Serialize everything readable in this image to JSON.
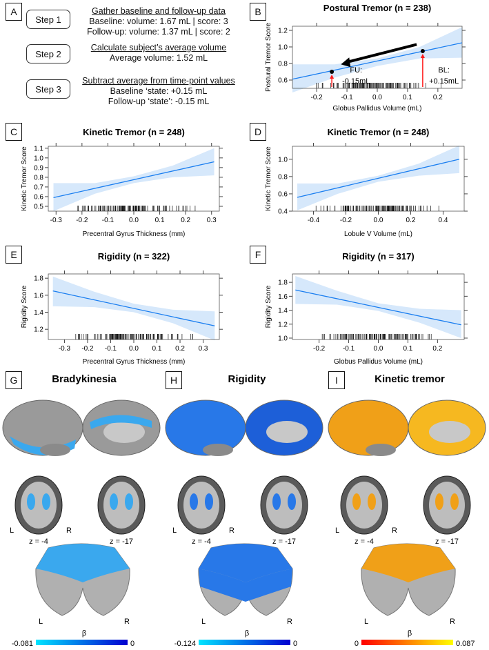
{
  "panel_labels": [
    "A",
    "B",
    "C",
    "D",
    "E",
    "F",
    "G",
    "H",
    "I"
  ],
  "steps": [
    {
      "label": "Step 1",
      "heading": "Gather baseline and follow-up data",
      "lines": [
        "Baseline: volume: 1.67 mL | score: 3",
        "Follow-up: volume: 1.37 mL | score: 2"
      ]
    },
    {
      "label": "Step 2",
      "heading": "Calculate subject’s average volume",
      "lines": [
        "Average volume: 1.52 mL"
      ]
    },
    {
      "label": "Step 3",
      "heading": "Subtract average from time-point values",
      "lines": [
        "Baseline ‘state: +0.15 mL",
        "Follow-up ‘state’: -0.15 mL"
      ]
    }
  ],
  "chart_data": [
    {
      "id": "B",
      "type": "line",
      "title": "Postural Tremor (n = 238)",
      "xlabel": "Globus Pallidus Volume (mL)",
      "ylabel": "Postural Tremor Score",
      "xlim": [
        -0.28,
        0.28
      ],
      "ylim": [
        0.5,
        1.25
      ],
      "xticks": [
        -0.2,
        -0.1,
        0.0,
        0.1,
        0.2
      ],
      "xtick_labels": [
        "-0.2",
        "-0.1",
        "0.0",
        "0.1",
        "0.2"
      ],
      "yticks": [
        0.6,
        0.8,
        1.0,
        1.2
      ],
      "ytick_labels": [
        "0.6",
        "0.8",
        "1.0",
        "1.2"
      ],
      "fit": {
        "x": [
          -0.28,
          0.28
        ],
        "y": [
          0.61,
          1.05
        ]
      },
      "ci": {
        "x": [
          -0.28,
          -0.14,
          0,
          0.14,
          0.28
        ],
        "lower": [
          0.45,
          0.63,
          0.77,
          0.86,
          0.87
        ],
        "upper": [
          0.79,
          0.79,
          0.86,
          1.0,
          1.24
        ]
      },
      "points": [
        {
          "x": -0.15,
          "y": 0.7
        },
        {
          "x": 0.15,
          "y": 0.95
        }
      ],
      "annotations": [
        {
          "text1": "FU:",
          "text2": "-0.15mL",
          "x": -0.07
        },
        {
          "text1": "BL:",
          "text2": "+0.15mL",
          "x": 0.22
        }
      ]
    },
    {
      "id": "C",
      "type": "line",
      "title": "Kinetic Tremor (n = 248)",
      "xlabel": "Precentral Gyrus Thickness (mm)",
      "ylabel": "Kinetic Tremor Score",
      "xlim": [
        -0.33,
        0.33
      ],
      "ylim": [
        0.45,
        1.12
      ],
      "xticks": [
        -0.3,
        -0.2,
        -0.1,
        0.0,
        0.1,
        0.2,
        0.3
      ],
      "xtick_labels": [
        "-0.3",
        "-0.2",
        "-0.1",
        "0.0",
        "0.1",
        "0.2",
        "0.3"
      ],
      "yticks": [
        0.5,
        0.6,
        0.7,
        0.8,
        0.9,
        1.0,
        1.1
      ],
      "ytick_labels": [
        "0.5",
        "0.6",
        "0.7",
        "0.8",
        "0.9",
        "1.0",
        "1.1"
      ],
      "fit": {
        "x": [
          -0.31,
          0.31
        ],
        "y": [
          0.59,
          0.96
        ]
      },
      "ci": {
        "x": [
          -0.31,
          -0.15,
          0,
          0.15,
          0.31
        ],
        "lower": [
          0.45,
          0.63,
          0.74,
          0.8,
          0.82
        ],
        "upper": [
          0.74,
          0.74,
          0.81,
          0.92,
          1.1
        ]
      }
    },
    {
      "id": "D",
      "type": "line",
      "title": "Kinetic Tremor (n = 248)",
      "xlabel": "Lobule V Volume (mL)",
      "ylabel": "Kinetic Tremor Score",
      "xlim": [
        -0.53,
        0.53
      ],
      "ylim": [
        0.4,
        1.15
      ],
      "xticks": [
        -0.4,
        -0.2,
        0.0,
        0.2,
        0.4
      ],
      "xtick_labels": [
        "-0.4",
        "-0.2",
        "0.0",
        "0.2",
        "0.4"
      ],
      "yticks": [
        0.4,
        0.6,
        0.8,
        1.0
      ],
      "ytick_labels": [
        "0.4",
        "0.6",
        "0.8",
        "1.0"
      ],
      "fit": {
        "x": [
          -0.5,
          0.5
        ],
        "y": [
          0.56,
          1.0
        ]
      },
      "ci": {
        "x": [
          -0.5,
          -0.25,
          0,
          0.25,
          0.5
        ],
        "lower": [
          0.41,
          0.6,
          0.74,
          0.81,
          0.84
        ],
        "upper": [
          0.72,
          0.72,
          0.81,
          0.95,
          1.16
        ]
      }
    },
    {
      "id": "E",
      "type": "line",
      "title": "Rigidity (n = 322)",
      "xlabel": "Precentral Gyrus Thickness (mm)",
      "ylabel": "Rigidity Score",
      "xlim": [
        -0.37,
        0.37
      ],
      "ylim": [
        1.08,
        1.85
      ],
      "xticks": [
        -0.3,
        -0.2,
        -0.1,
        0.0,
        0.1,
        0.2,
        0.3
      ],
      "xtick_labels": [
        "-0.3",
        "-0.2",
        "-0.1",
        "0.0",
        "0.1",
        "0.2",
        "0.3"
      ],
      "yticks": [
        1.2,
        1.4,
        1.6,
        1.8
      ],
      "ytick_labels": [
        "1.2",
        "1.4",
        "1.6",
        "1.8"
      ],
      "fit": {
        "x": [
          -0.35,
          0.35
        ],
        "y": [
          1.65,
          1.24
        ]
      },
      "ci": {
        "x": [
          -0.35,
          -0.17,
          0,
          0.17,
          0.35
        ],
        "lower": [
          1.47,
          1.46,
          1.4,
          1.27,
          1.07
        ],
        "upper": [
          1.82,
          1.64,
          1.5,
          1.43,
          1.41
        ]
      }
    },
    {
      "id": "F",
      "type": "line",
      "title": "Rigidity (n = 317)",
      "xlabel": "Globus Pallidus Volume (mL)",
      "ylabel": "Rigidity Score",
      "xlim": [
        -0.29,
        0.29
      ],
      "ylim": [
        0.98,
        1.92
      ],
      "xticks": [
        -0.2,
        -0.1,
        0.0,
        0.1,
        0.2
      ],
      "xtick_labels": [
        "-0.2",
        "-0.1",
        "0.0",
        "0.1",
        "0.2"
      ],
      "yticks": [
        1.0,
        1.2,
        1.4,
        1.6,
        1.8
      ],
      "ytick_labels": [
        "1.0",
        "1.2",
        "1.4",
        "1.6",
        "1.8"
      ],
      "fit": {
        "x": [
          -0.28,
          0.28
        ],
        "y": [
          1.69,
          1.19
        ]
      },
      "ci": {
        "x": [
          -0.28,
          -0.14,
          0,
          0.14,
          0.28
        ],
        "lower": [
          1.49,
          1.48,
          1.39,
          1.22,
          1.0
        ],
        "upper": [
          1.89,
          1.68,
          1.5,
          1.42,
          1.4
        ]
      }
    }
  ],
  "brain_panels": [
    {
      "id": "G",
      "title": "Bradykinesia",
      "color": "#3aa8ee",
      "color2": "#1f84e0",
      "z1": "z = -4",
      "z2": "z = -17",
      "L": "L",
      "R": "R",
      "beta": "β",
      "cmin": "-0.081",
      "cmax": "0",
      "grad": [
        "#00e5ff",
        "#0000d0"
      ]
    },
    {
      "id": "H",
      "title": "Rigidity",
      "color": "#2878e8",
      "color2": "#1d5fd8",
      "z1": "z = -4",
      "z2": "z = -17",
      "L": "L",
      "R": "R",
      "beta": "β",
      "cmin": "-0.124",
      "cmax": "0",
      "grad": [
        "#00e5ff",
        "#0000d0"
      ]
    },
    {
      "id": "I",
      "title": "Kinetic tremor",
      "color": "#f0a018",
      "color2": "#f6b820",
      "z1": "z = -4",
      "z2": "z = -17",
      "L": "L",
      "R": "R",
      "beta": "β",
      "cmin": "0",
      "cmax": "0.087",
      "grad": [
        "#ff0000",
        "#ffff00"
      ]
    }
  ],
  "colors": {
    "fit": "#1a7ef0",
    "ci": "#d6e8fb",
    "arrow_red": "#ff1a1a"
  }
}
